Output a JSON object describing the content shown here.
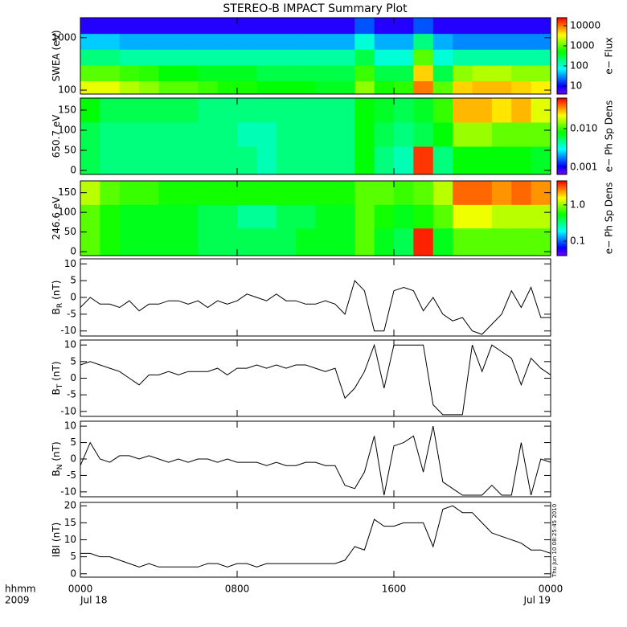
{
  "chart_data": [
    {
      "type": "heatmap",
      "title": "STEREO-B IMPACT Summary Plot",
      "ylabel": "SWEA (eV)",
      "yscale": "log",
      "ylim": [
        84,
        2400
      ],
      "yticks": [
        100,
        1000
      ],
      "xlim": [
        0,
        24
      ],
      "x_edges": [
        0,
        1,
        2,
        3,
        4,
        5,
        6,
        7,
        8,
        9,
        10,
        11,
        12,
        13,
        14,
        15,
        16,
        17,
        18,
        19,
        20,
        21,
        22,
        23,
        24
      ],
      "y_edges": [
        84,
        150,
        300,
        600,
        1200,
        2400
      ],
      "z": [
        [
          3000,
          3000,
          2000,
          1500,
          1000,
          1000,
          800,
          600,
          600,
          500,
          500,
          500,
          400,
          400,
          1500,
          600,
          700,
          10000,
          1000,
          5000,
          6000,
          6000,
          5000,
          4000
        ],
        [
          1000,
          1000,
          800,
          700,
          500,
          500,
          400,
          400,
          400,
          300,
          300,
          300,
          300,
          300,
          800,
          300,
          300,
          5000,
          300,
          1500,
          2000,
          2000,
          1500,
          1500
        ],
        [
          200,
          200,
          150,
          150,
          150,
          150,
          150,
          150,
          150,
          150,
          150,
          150,
          150,
          150,
          300,
          100,
          100,
          1000,
          100,
          150,
          150,
          150,
          150,
          150
        ],
        [
          50,
          50,
          40,
          40,
          40,
          40,
          40,
          40,
          40,
          40,
          40,
          40,
          40,
          40,
          100,
          40,
          40,
          200,
          40,
          30,
          30,
          30,
          30,
          30
        ],
        [
          8,
          8,
          8,
          8,
          8,
          8,
          8,
          8,
          8,
          8,
          8,
          8,
          8,
          8,
          20,
          8,
          8,
          20,
          8,
          8,
          8,
          8,
          8,
          8
        ]
      ],
      "cscale": "log",
      "clim": [
        4,
        25000
      ],
      "cticks": [
        10,
        100,
        1000,
        10000
      ],
      "colorbar_label": "e− Flux"
    },
    {
      "type": "heatmap",
      "ylabel": "650.7 eV",
      "yscale": "linear",
      "ylim": [
        -10,
        180
      ],
      "yticks": [
        0,
        50,
        100,
        150
      ],
      "xlim": [
        0,
        24
      ],
      "x_edges": [
        0,
        1,
        2,
        3,
        4,
        5,
        6,
        7,
        8,
        9,
        10,
        11,
        12,
        13,
        14,
        15,
        16,
        17,
        18,
        19,
        20,
        21,
        22,
        23,
        24
      ],
      "y_edges": [
        -10,
        60,
        120,
        180
      ],
      "z": [
        [
          0.006,
          0.005,
          0.005,
          0.005,
          0.005,
          0.005,
          0.005,
          0.005,
          0.005,
          0.004,
          0.005,
          0.005,
          0.005,
          0.005,
          0.008,
          0.005,
          0.004,
          0.05,
          0.005,
          0.008,
          0.008,
          0.008,
          0.008,
          0.007
        ],
        [
          0.006,
          0.005,
          0.005,
          0.005,
          0.005,
          0.005,
          0.005,
          0.005,
          0.004,
          0.004,
          0.005,
          0.005,
          0.005,
          0.005,
          0.008,
          0.006,
          0.005,
          0.006,
          0.008,
          0.015,
          0.015,
          0.012,
          0.012,
          0.012
        ],
        [
          0.008,
          0.006,
          0.006,
          0.006,
          0.006,
          0.006,
          0.005,
          0.005,
          0.005,
          0.005,
          0.005,
          0.005,
          0.005,
          0.005,
          0.008,
          0.007,
          0.006,
          0.007,
          0.01,
          0.03,
          0.03,
          0.025,
          0.03,
          0.02
        ]
      ],
      "cscale": "log",
      "clim": [
        0.00065,
        0.062
      ],
      "cticks": [
        0.001,
        {
          "value": 0.01,
          "label": "0.010"
        }
      ],
      "colorbar_label": "e− Ph Sp Dens"
    },
    {
      "type": "heatmap",
      "ylabel": "246.6 eV",
      "yscale": "linear",
      "ylim": [
        -10,
        180
      ],
      "yticks": [
        0,
        50,
        100,
        150
      ],
      "xlim": [
        0,
        24
      ],
      "x_edges": [
        0,
        1,
        2,
        3,
        4,
        5,
        6,
        7,
        8,
        9,
        10,
        11,
        12,
        13,
        14,
        15,
        16,
        17,
        18,
        19,
        20,
        21,
        22,
        23,
        24
      ],
      "y_edges": [
        -10,
        60,
        120,
        180
      ],
      "z": [
        [
          0.8,
          0.6,
          0.5,
          0.5,
          0.5,
          0.5,
          0.4,
          0.4,
          0.4,
          0.4,
          0.4,
          0.5,
          0.5,
          0.5,
          0.8,
          0.5,
          0.4,
          4,
          0.5,
          0.8,
          0.8,
          0.8,
          0.8,
          0.8
        ],
        [
          0.8,
          0.6,
          0.5,
          0.5,
          0.5,
          0.5,
          0.4,
          0.4,
          0.3,
          0.3,
          0.4,
          0.4,
          0.5,
          0.5,
          0.8,
          0.6,
          0.5,
          0.6,
          0.8,
          1.5,
          1.5,
          1.2,
          1.2,
          1.2
        ],
        [
          1.2,
          0.8,
          0.7,
          0.7,
          0.6,
          0.6,
          0.6,
          0.6,
          0.6,
          0.6,
          0.6,
          0.6,
          0.6,
          0.6,
          0.8,
          0.8,
          0.7,
          0.8,
          1.2,
          3,
          3,
          2.5,
          3,
          2.5
        ]
      ],
      "cscale": "log",
      "clim": [
        0.04,
        4.6
      ],
      "cticks": [
        0.1,
        {
          "value": 1,
          "label": "1.0"
        }
      ],
      "colorbar_label": "e− Ph Sp Dens"
    },
    {
      "type": "line",
      "ylabel": "B",
      "ylabel_subscript": "R",
      "ylabel_units": "(nT)",
      "ylim": [
        -11.5,
        11.5
      ],
      "yticks": [
        -10,
        -5,
        0,
        5,
        10
      ],
      "xlim": [
        0,
        24
      ],
      "color": "#000000",
      "x": [
        0,
        0.5,
        1,
        1.5,
        2,
        2.5,
        3,
        3.5,
        4,
        4.5,
        5,
        5.5,
        6,
        6.5,
        7,
        7.5,
        8,
        8.5,
        9,
        9.5,
        10,
        10.5,
        11,
        11.5,
        12,
        12.5,
        13,
        13.5,
        14,
        14.5,
        15,
        15.5,
        16,
        16.5,
        17,
        17.5,
        18,
        18.5,
        19,
        19.5,
        20,
        20.5,
        21,
        21.5,
        22,
        22.5,
        23,
        23.5,
        24
      ],
      "values": [
        -3,
        0,
        -2,
        -2,
        -3,
        -1,
        -4,
        -2,
        -2,
        -1,
        -1,
        -2,
        -1,
        -3,
        -1,
        -2,
        -1,
        1,
        0,
        -1,
        1,
        -1,
        -1,
        -2,
        -2,
        -1,
        -2,
        -5,
        5,
        2,
        -10,
        -10,
        2,
        3,
        2,
        -4,
        0,
        -5,
        -7,
        -6,
        -10,
        -11,
        -8,
        -5,
        2,
        -3,
        3,
        -6,
        -6
      ]
    },
    {
      "type": "line",
      "ylabel": "B",
      "ylabel_subscript": "T",
      "ylabel_units": "(nT)",
      "ylim": [
        -11.5,
        11.5
      ],
      "yticks": [
        -10,
        -5,
        0,
        5,
        10
      ],
      "xlim": [
        0,
        24
      ],
      "color": "#000000",
      "x": [
        0,
        0.5,
        1,
        1.5,
        2,
        2.5,
        3,
        3.5,
        4,
        4.5,
        5,
        5.5,
        6,
        6.5,
        7,
        7.5,
        8,
        8.5,
        9,
        9.5,
        10,
        10.5,
        11,
        11.5,
        12,
        12.5,
        13,
        13.5,
        14,
        14.5,
        15,
        15.5,
        16,
        16.5,
        17,
        17.5,
        18,
        18.5,
        19,
        19.5,
        20,
        20.5,
        21,
        21.5,
        22,
        22.5,
        23,
        23.5,
        24
      ],
      "values": [
        4,
        5,
        4,
        3,
        2,
        0,
        -2,
        1,
        1,
        2,
        1,
        2,
        2,
        2,
        3,
        1,
        3,
        3,
        4,
        3,
        4,
        3,
        4,
        4,
        3,
        2,
        3,
        -6,
        -3,
        2,
        10,
        -3,
        10,
        10,
        10,
        10,
        -8,
        -11,
        -11,
        -11,
        10,
        2,
        10,
        8,
        6,
        -2,
        6,
        3,
        1
      ]
    },
    {
      "type": "line",
      "ylabel": "B",
      "ylabel_subscript": "N",
      "ylabel_units": "(nT)",
      "ylim": [
        -11.5,
        11.5
      ],
      "yticks": [
        -10,
        -5,
        0,
        5,
        10
      ],
      "xlim": [
        0,
        24
      ],
      "color": "#000000",
      "x": [
        0,
        0.5,
        1,
        1.5,
        2,
        2.5,
        3,
        3.5,
        4,
        4.5,
        5,
        5.5,
        6,
        6.5,
        7,
        7.5,
        8,
        8.5,
        9,
        9.5,
        10,
        10.5,
        11,
        11.5,
        12,
        12.5,
        13,
        13.5,
        14,
        14.5,
        15,
        15.5,
        16,
        16.5,
        17,
        17.5,
        18,
        18.5,
        19,
        19.5,
        20,
        20.5,
        21,
        21.5,
        22,
        22.5,
        23,
        23.5,
        24
      ],
      "values": [
        -2,
        5,
        0,
        -1,
        1,
        1,
        0,
        1,
        0,
        -1,
        0,
        -1,
        0,
        0,
        -1,
        0,
        -1,
        -1,
        -1,
        -2,
        -1,
        -2,
        -2,
        -1,
        -1,
        -2,
        -2,
        -8,
        -9,
        -4,
        7,
        -11,
        4,
        5,
        7,
        -4,
        10,
        -7,
        -9,
        -11,
        -11,
        -11,
        -8,
        -11,
        -11,
        5,
        -11,
        0,
        -1
      ]
    },
    {
      "type": "line",
      "ylabel": "IBI (nT)",
      "ylim": [
        -1,
        21
      ],
      "yticks": [
        0,
        5,
        10,
        15,
        20
      ],
      "xlim": [
        0,
        24
      ],
      "color": "#000000",
      "x": [
        0,
        0.5,
        1,
        1.5,
        2,
        2.5,
        3,
        3.5,
        4,
        4.5,
        5,
        5.5,
        6,
        6.5,
        7,
        7.5,
        8,
        8.5,
        9,
        9.5,
        10,
        10.5,
        11,
        11.5,
        12,
        12.5,
        13,
        13.5,
        14,
        14.5,
        15,
        15.5,
        16,
        16.5,
        17,
        17.5,
        18,
        18.5,
        19,
        19.5,
        20,
        20.5,
        21,
        21.5,
        22,
        22.5,
        23,
        23.5,
        24
      ],
      "values": [
        6,
        6,
        5,
        5,
        4,
        3,
        2,
        3,
        2,
        2,
        2,
        2,
        2,
        3,
        3,
        2,
        3,
        3,
        2,
        3,
        3,
        3,
        3,
        3,
        3,
        3,
        3,
        4,
        8,
        7,
        16,
        14,
        14,
        15,
        15,
        15,
        8,
        19,
        20,
        18,
        18,
        15,
        12,
        11,
        10,
        9,
        7,
        7,
        6
      ],
      "xticks": [
        {
          "value": 0,
          "label": "0000"
        },
        {
          "value": 8,
          "label": "0800"
        },
        {
          "value": 16,
          "label": "1600"
        },
        {
          "value": 24,
          "label": "0000"
        }
      ],
      "x_dates": [
        {
          "value": 0,
          "label": "Jul 18"
        },
        {
          "value": 24,
          "label": "Jul 19"
        }
      ],
      "x_annotations": [
        "hhmm",
        "2009"
      ],
      "timestamp": "Thu Jun 10 08:25:45 2010"
    }
  ]
}
